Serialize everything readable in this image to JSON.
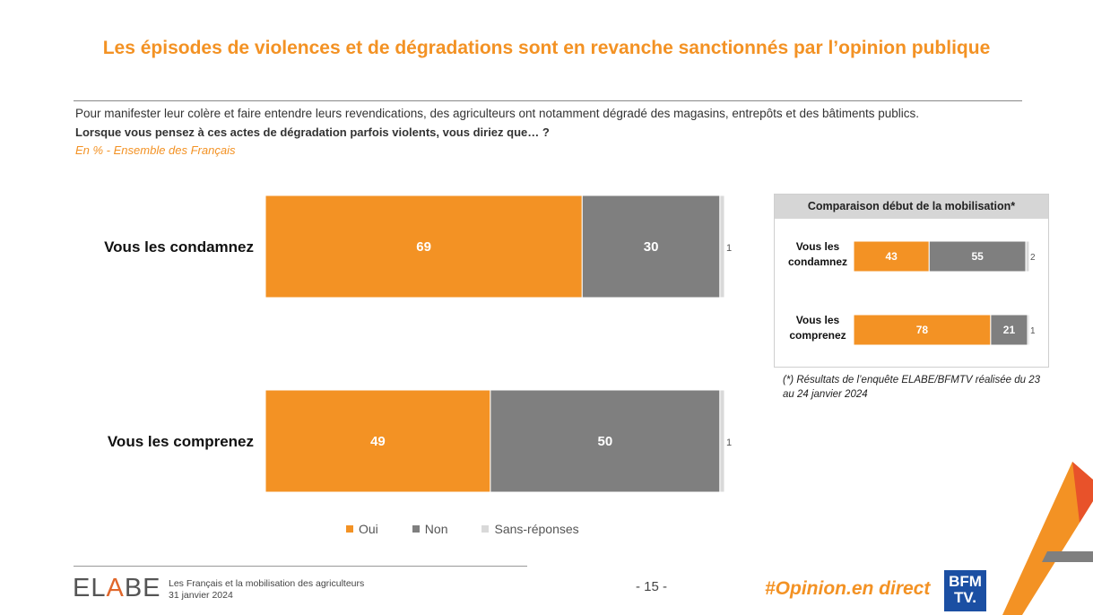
{
  "title": "Les épisodes de violences et de dégradations sont en revanche sanctionnés par l’opinion publique",
  "intro": "Pour manifester leur colère et faire entendre leurs revendications, des agriculteurs ont notamment dégradé des magasins, entrepôts et des bâtiments publics.",
  "question": "Lorsque vous pensez à ces actes de dégradation parfois violents, vous diriez que… ?",
  "base": "En % - Ensemble des Français",
  "chart_data": [
    {
      "type": "bar",
      "orientation": "horizontal",
      "stacked": true,
      "categories": [
        "Vous les condamnez",
        "Vous les comprenez"
      ],
      "series": [
        {
          "name": "Oui",
          "values": [
            69,
            49
          ]
        },
        {
          "name": "Non",
          "values": [
            30,
            50
          ]
        },
        {
          "name": "Sans-réponses",
          "values": [
            1,
            1
          ]
        }
      ],
      "xlim": [
        0,
        100
      ],
      "legend": "bottom",
      "colors": {
        "Oui": "#f39224",
        "Non": "#7f7f7f",
        "Sans-réponses": "#d9d9d9"
      }
    },
    {
      "type": "bar",
      "orientation": "horizontal",
      "stacked": true,
      "title": "Comparaison début de la mobilisation*",
      "categories": [
        [
          "Vous les",
          "condamnez"
        ],
        [
          "Vous les",
          "comprenez"
        ]
      ],
      "series": [
        {
          "name": "Oui",
          "values": [
            43,
            78
          ]
        },
        {
          "name": "Non",
          "values": [
            55,
            21
          ]
        },
        {
          "name": "Sans-réponses",
          "values": [
            2,
            1
          ]
        }
      ],
      "xlim": [
        0,
        100
      ]
    }
  ],
  "legend": [
    {
      "label": "Oui",
      "color": "#f39224"
    },
    {
      "label": "Non",
      "color": "#7f7f7f"
    },
    {
      "label": "Sans-réponses",
      "color": "#d9d9d9"
    }
  ],
  "note": "(*) Résultats de l’enquête ELABE/BFMTV réalisée du 23 au 24 janvier 2024",
  "footer": {
    "logo_part1": "EL",
    "logo_accent": "A",
    "logo_part2": "BE",
    "subtitle": "Les Français et la mobilisation des agriculteurs",
    "date": "31 janvier 2024",
    "page": "- 15 -",
    "hashtag": "#Opinion.en direct",
    "bfm_line1": "BFM",
    "bfm_line2": "TV."
  }
}
